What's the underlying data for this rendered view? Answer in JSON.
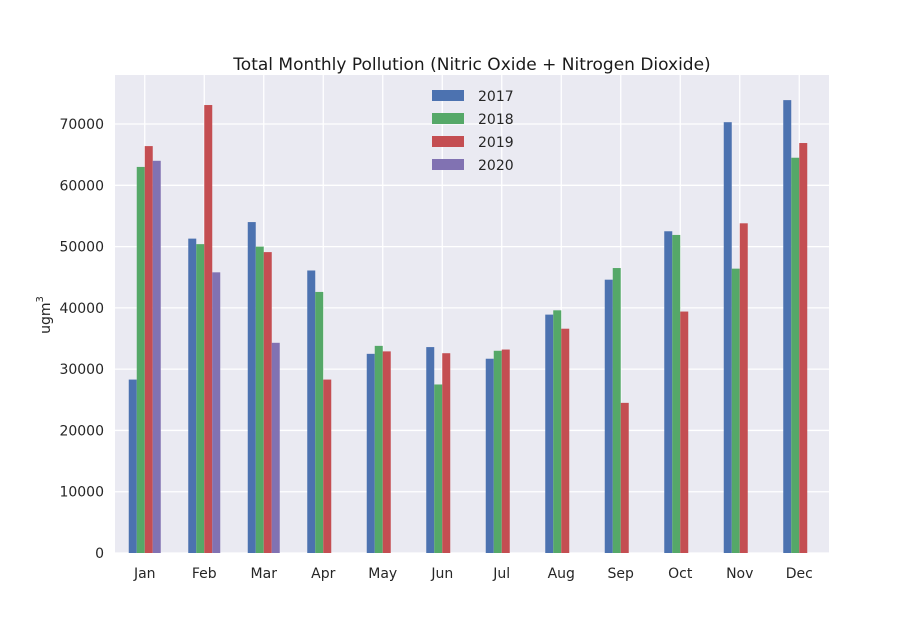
{
  "chart_data": {
    "type": "bar",
    "title": "Total Monthly Pollution (Nitric Oxide + Nitrogen Dioxide)",
    "xlabel": "",
    "ylabel": "ugm",
    "ylabel_superscript": "3",
    "ylim": [
      0,
      78000
    ],
    "yticks": [
      0,
      10000,
      20000,
      30000,
      40000,
      50000,
      60000,
      70000
    ],
    "grid": true,
    "legend_position": "top-center",
    "categories": [
      "Jan",
      "Feb",
      "Mar",
      "Apr",
      "May",
      "Jun",
      "Jul",
      "Aug",
      "Sep",
      "Oct",
      "Nov",
      "Dec"
    ],
    "series": [
      {
        "name": "2017",
        "color": "#4c72b0",
        "values": [
          28300,
          51300,
          54000,
          46100,
          32500,
          33600,
          31700,
          38900,
          44600,
          52500,
          70300,
          73900
        ]
      },
      {
        "name": "2018",
        "color": "#55a868",
        "values": [
          63000,
          50400,
          50000,
          42600,
          33800,
          27500,
          33000,
          39600,
          46500,
          51900,
          46400,
          64500
        ]
      },
      {
        "name": "2019",
        "color": "#c44e52",
        "values": [
          66400,
          73100,
          49100,
          28300,
          32900,
          32600,
          33200,
          36600,
          24500,
          39400,
          53800,
          66900
        ]
      },
      {
        "name": "2020",
        "color": "#8172b2",
        "values": [
          64000,
          45800,
          34300,
          null,
          null,
          null,
          null,
          null,
          null,
          null,
          null,
          null
        ]
      }
    ]
  },
  "colors": {
    "plot_background": "#eaeaf2",
    "grid": "#ffffff"
  }
}
